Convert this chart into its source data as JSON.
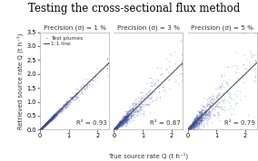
{
  "title": "Testing the cross-sectional flux method",
  "title_fontsize": 8.5,
  "subplots": [
    {
      "label": "Precision (σ) = 1 %",
      "r2": "R² = 0.93",
      "seed": 42,
      "noise_scale": 0.07
    },
    {
      "label": "Precision (σ) = 3 %",
      "r2": "R² = 0.87",
      "seed": 43,
      "noise_scale": 0.2
    },
    {
      "label": "Precision (σ) = 5 %",
      "r2": "R² = 0.79",
      "seed": 44,
      "noise_scale": 0.3
    }
  ],
  "xlabel": "True source rate Q (t h⁻¹)",
  "ylabel": "Retrieved source rate Q (t h⁻¹)",
  "xlim": [
    0,
    2.4
  ],
  "ylim": [
    0,
    3.5
  ],
  "xticks": [
    0,
    1,
    2
  ],
  "yticks": [
    0.0,
    0.5,
    1.0,
    1.5,
    2.0,
    2.5,
    3.0,
    3.5
  ],
  "dot_color": "#4455aa",
  "dot_alpha": 0.25,
  "dot_size": 1.2,
  "line_color": "#444444",
  "background_color": "#ffffff",
  "legend_labels": [
    "Test plumes",
    "1:1 line"
  ],
  "n_points": 800
}
